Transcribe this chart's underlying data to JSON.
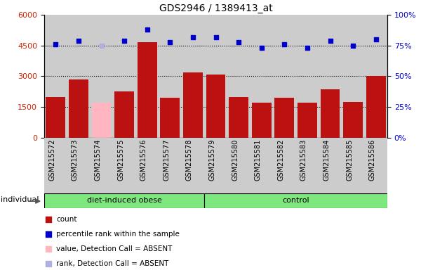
{
  "title": "GDS2946 / 1389413_at",
  "samples": [
    "GSM215572",
    "GSM215573",
    "GSM215574",
    "GSM215575",
    "GSM215576",
    "GSM215577",
    "GSM215578",
    "GSM215579",
    "GSM215580",
    "GSM215581",
    "GSM215582",
    "GSM215583",
    "GSM215584",
    "GSM215585",
    "GSM215586"
  ],
  "count_values": [
    2000,
    2850,
    1700,
    2250,
    4650,
    1950,
    3200,
    3100,
    2000,
    1700,
    1950,
    1700,
    2350,
    1750,
    3000
  ],
  "absent_indices": [
    2
  ],
  "rank_values": [
    76,
    79,
    75,
    79,
    88,
    78,
    82,
    82,
    78,
    73,
    76,
    73,
    79,
    75,
    80
  ],
  "absent_rank_indices": [
    2
  ],
  "groups": [
    {
      "label": "diet-induced obese",
      "start": 0,
      "end": 7,
      "color": "#7ee87e"
    },
    {
      "label": "control",
      "start": 7,
      "end": 15,
      "color": "#7ee87e"
    }
  ],
  "left_ylim": [
    0,
    6000
  ],
  "right_ylim": [
    0,
    100
  ],
  "left_yticks": [
    0,
    1500,
    3000,
    4500,
    6000
  ],
  "right_yticks": [
    0,
    25,
    50,
    75,
    100
  ],
  "bar_color_normal": "#bb1111",
  "bar_color_absent": "#ffb6c1",
  "rank_color_normal": "#0000cc",
  "rank_color_absent": "#b0b0e0",
  "grid_values": [
    1500,
    3000,
    4500
  ],
  "col_bg_color": "#cccccc",
  "individual_label": "individual",
  "legend_items": [
    {
      "label": "count",
      "color": "#bb1111"
    },
    {
      "label": "percentile rank within the sample",
      "color": "#0000cc"
    },
    {
      "label": "value, Detection Call = ABSENT",
      "color": "#ffb6c1"
    },
    {
      "label": "rank, Detection Call = ABSENT",
      "color": "#b0b0e0"
    }
  ]
}
